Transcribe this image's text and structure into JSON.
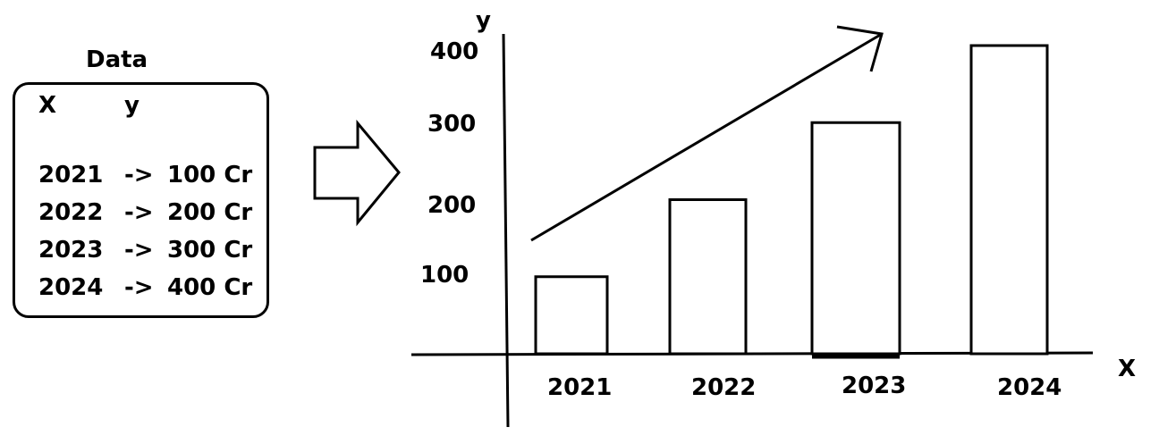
{
  "data_table": {
    "title": "Data",
    "header_x": "X",
    "header_y": "y",
    "rows": [
      {
        "year": "2021",
        "arrow": "->",
        "value": "100 Cr"
      },
      {
        "year": "2022",
        "arrow": "->",
        "value": "200 Cr"
      },
      {
        "year": "2023",
        "arrow": "->",
        "value": "300 Cr"
      },
      {
        "year": "2024",
        "arrow": "->",
        "value": "400 Cr"
      }
    ]
  },
  "chart_data": {
    "type": "bar",
    "categories": [
      "2021",
      "2022",
      "2023",
      "2024"
    ],
    "values": [
      100,
      200,
      300,
      400
    ],
    "ytick_labels": [
      "100",
      "200",
      "300",
      "400"
    ],
    "xlabel": "X",
    "ylabel": "y",
    "title": "",
    "trend_arrow": true
  }
}
